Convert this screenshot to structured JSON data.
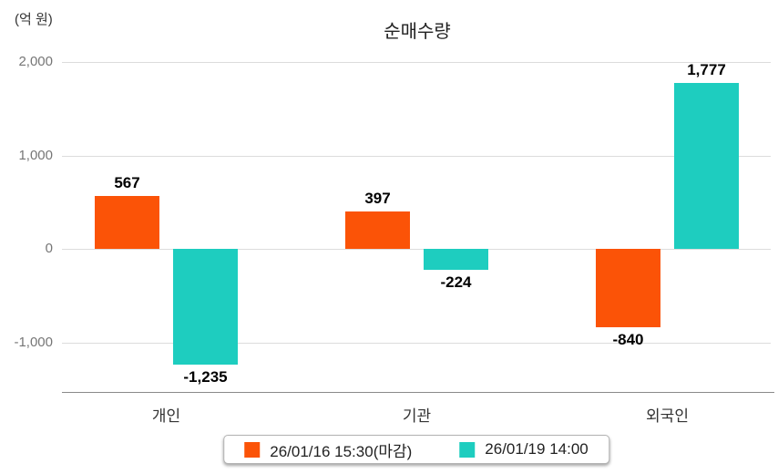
{
  "chart_data": {
    "type": "bar",
    "title": "순매수량",
    "unit_label": "(억 원)",
    "categories": [
      "개인",
      "기관",
      "외국인"
    ],
    "series": [
      {
        "name": "26/01/16 15:30(마감)",
        "color": "#fb5307",
        "values": [
          567,
          397,
          -840
        ]
      },
      {
        "name": "26/01/19 14:00",
        "color": "#1ecdbf",
        "values": [
          -1235,
          -224,
          1777
        ]
      }
    ],
    "ytick_values": [
      2000,
      1000,
      0,
      -1000
    ],
    "ytick_labels": [
      "2,000",
      "1,000",
      "0",
      "-1,000"
    ],
    "ylim": [
      -1530,
      2000
    ],
    "grid": true,
    "legend_position": "bottom"
  }
}
